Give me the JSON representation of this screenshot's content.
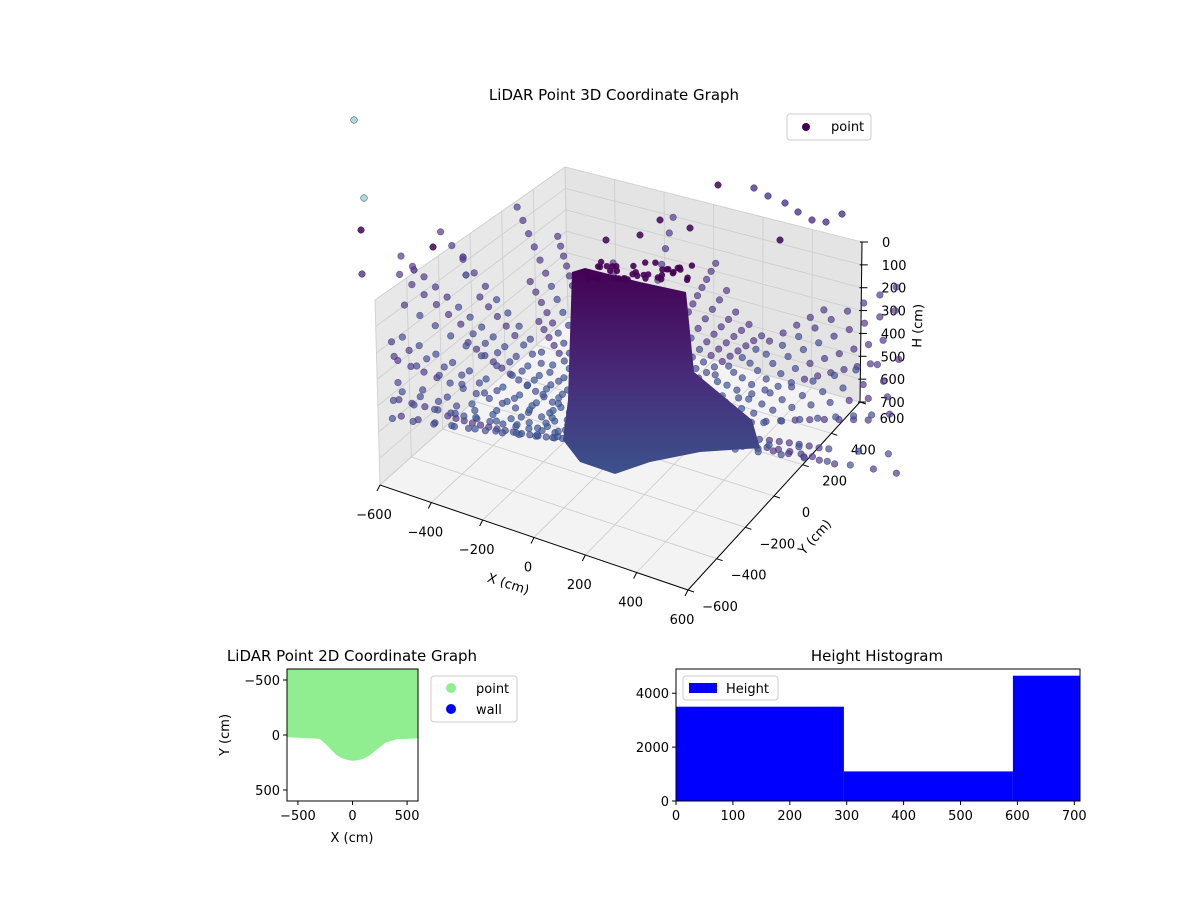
{
  "chart_data": [
    {
      "type": "scatter3d",
      "title": "LiDAR Point 3D Coordinate Graph",
      "xlabel": "X (cm)",
      "ylabel": "Y (cm)",
      "zlabel": "H (cm)",
      "xlim": [
        -600,
        600
      ],
      "ylim": [
        -600,
        600
      ],
      "zlim": [
        0,
        700
      ],
      "x_ticks": [
        "−600",
        "−400",
        "−200",
        "0",
        "200",
        "400",
        "600"
      ],
      "y_ticks": [
        "−600",
        "−400",
        "−200",
        "0",
        "200",
        "400",
        "600"
      ],
      "z_ticks": [
        "0",
        "100",
        "200",
        "300",
        "400",
        "500",
        "600",
        "700"
      ],
      "z_inverted": true,
      "grid": true,
      "colormap": "viridis",
      "legend": {
        "placement": "top-right",
        "entries": [
          "point"
        ]
      },
      "series": [
        {
          "name": "point",
          "color": "#440154"
        }
      ]
    },
    {
      "type": "scatter",
      "title": "LiDAR Point 2D Coordinate Graph",
      "xlabel": "X (cm)",
      "ylabel": "Y (cm)",
      "xlim": [
        -600,
        600
      ],
      "ylim": [
        -600,
        600
      ],
      "x_ticks": [
        "−500",
        "0",
        "500"
      ],
      "y_ticks": [
        "−500",
        "0",
        "500"
      ],
      "legend": {
        "placement": "outside-right",
        "entries": [
          "point",
          "wall"
        ]
      },
      "series": [
        {
          "name": "point",
          "color": "#90ee90"
        },
        {
          "name": "wall",
          "color": "#0000ff"
        }
      ],
      "boundary_profile": {
        "x": [
          -600,
          -500,
          -400,
          -300,
          -250,
          -200,
          -150,
          -100,
          -50,
          0,
          50,
          100,
          150,
          200,
          250,
          300,
          400,
          500,
          600
        ],
        "y": [
          -20,
          -25,
          -30,
          -35,
          -80,
          -130,
          -180,
          -210,
          -225,
          -235,
          -230,
          -215,
          -190,
          -150,
          -110,
          -70,
          -40,
          -35,
          -30
        ]
      }
    },
    {
      "type": "bar",
      "title": "Height Histogram",
      "legend": {
        "placement": "top-left",
        "entries": [
          "Height"
        ]
      },
      "xlim": [
        0,
        710
      ],
      "ylim": [
        0,
        4900
      ],
      "x_ticks": [
        "0",
        "100",
        "200",
        "300",
        "400",
        "500",
        "600",
        "700"
      ],
      "y_ticks": [
        "0",
        "2000",
        "4000"
      ],
      "series": [
        {
          "name": "Height",
          "color": "#0000ff"
        }
      ],
      "bins": [
        {
          "start": 0,
          "end": 295,
          "count": 3500
        },
        {
          "start": 295,
          "end": 592,
          "count": 1100
        },
        {
          "start": 592,
          "end": 710,
          "count": 4650
        }
      ]
    }
  ]
}
